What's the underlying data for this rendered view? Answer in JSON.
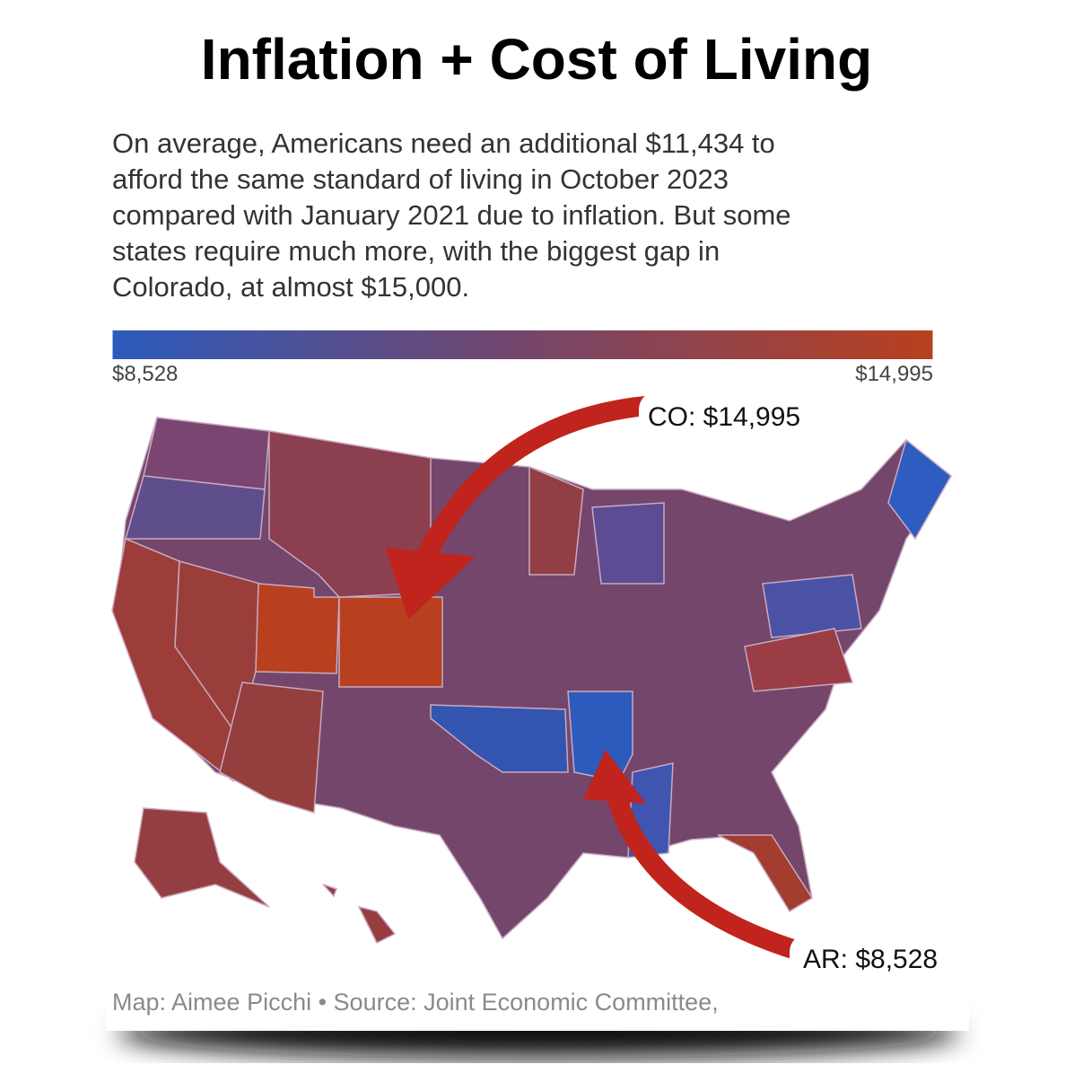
{
  "title": "Inflation + Cost of Living",
  "description_lines": [
    "On average, Americans need an additional $11,434 to",
    "afford the same standard of living in October 2023",
    "compared with January 2021 due to inflation. But some",
    "states require much more, with the biggest gap in",
    "Colorado, at almost $15,000."
  ],
  "legend": {
    "min": {
      "value": 8528,
      "label": "$8,528"
    },
    "max": {
      "value": 14995,
      "label": "$14,995"
    },
    "colors": [
      "#2c5bbd",
      "#74466b",
      "#b8401f"
    ]
  },
  "annotations": [
    {
      "label": "CO: $14,995",
      "value": 14995
    },
    {
      "label": "AR: $8,528",
      "value": 8528
    }
  ],
  "source": "Map: Aimee Picchi • Source: Joint Economic Committee,"
}
